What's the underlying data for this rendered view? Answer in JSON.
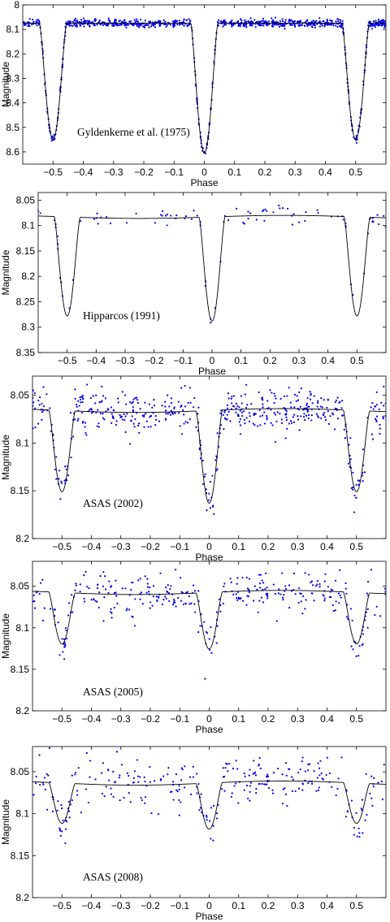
{
  "figure": {
    "colors": {
      "points": "#0000ee",
      "model": "#000000",
      "frame": "#000000"
    },
    "panel_count": 5
  },
  "chart_data": [
    {
      "type": "scatter",
      "title": "",
      "annotation": "Gyldenkerne et al. (1975)",
      "xlabel": "Phase",
      "ylabel": "Magnitude",
      "xlim": [
        -0.6,
        0.6
      ],
      "ylim": [
        8.0,
        8.65
      ],
      "y_inverted": true,
      "xticks": [
        -0.5,
        -0.4,
        -0.3,
        -0.2,
        -0.1,
        0,
        0.1,
        0.2,
        0.3,
        0.4,
        0.5
      ],
      "xtick_labels": [
        "−0.5",
        "−0.4",
        "−0.3",
        "−0.2",
        "−0.1",
        "0",
        "0.1",
        "0.2",
        "0.3",
        "0.4",
        "0.5"
      ],
      "yticks": [
        8,
        8.1,
        8.2,
        8.3,
        8.4,
        8.5,
        8.6
      ],
      "ytick_labels": [
        "8",
        "8.1",
        "8.2",
        "8.3",
        "8.4",
        "8.5",
        "8.6"
      ],
      "model": {
        "base": 8.075,
        "amp": 0,
        "primary_depth": 0.53,
        "secondary_depth": 0.475,
        "half_width": 0.045
      },
      "points": {
        "count": 900,
        "scatter": 0.008
      },
      "series": [
        {
          "kind": "points",
          "marker": "dot"
        },
        {
          "kind": "model",
          "style": "line"
        }
      ]
    },
    {
      "type": "scatter",
      "title": "",
      "annotation": "Hipparcos (1991)",
      "xlabel": "Phase",
      "ylabel": "Magnitude",
      "xlim": [
        -0.6,
        0.6
      ],
      "ylim": [
        8.035,
        8.35
      ],
      "y_inverted": true,
      "xticks": [
        -0.5,
        -0.4,
        -0.3,
        -0.2,
        -0.1,
        0,
        0.1,
        0.2,
        0.3,
        0.4,
        0.5
      ],
      "xtick_labels": [
        "−0.5",
        "−0.4",
        "−0.3",
        "−0.2",
        "−0.1",
        "0",
        "0.1",
        "0.2",
        "0.3",
        "0.4",
        "0.5"
      ],
      "yticks": [
        8.05,
        8.1,
        8.15,
        8.2,
        8.25,
        8.3,
        8.35
      ],
      "ytick_labels": [
        "8.05",
        "8.1",
        "8.15",
        "8.2",
        "8.25",
        "8.3",
        "8.35"
      ],
      "model": {
        "base": 8.086,
        "amp": 0.006,
        "primary_depth": 0.205,
        "secondary_depth": 0.195,
        "half_width": 0.045
      },
      "points": {
        "count": 95,
        "scatter": 0.008
      },
      "series": [
        {
          "kind": "points",
          "marker": "dot"
        },
        {
          "kind": "model",
          "style": "line"
        }
      ]
    },
    {
      "type": "scatter",
      "title": "",
      "annotation": "ASAS (2002)",
      "xlabel": "Phase",
      "ylabel": "Magnitude",
      "xlim": [
        -0.6,
        0.6
      ],
      "ylim": [
        8.03,
        8.2
      ],
      "y_inverted": true,
      "xticks": [
        -0.5,
        -0.4,
        -0.3,
        -0.2,
        -0.1,
        0,
        0.1,
        0.2,
        0.3,
        0.4,
        0.5
      ],
      "xtick_labels": [
        "−0.5",
        "−0.4",
        "−0.3",
        "−0.2",
        "−0.1",
        "0",
        "0.1",
        "0.2",
        "0.3",
        "0.4",
        "0.5"
      ],
      "yticks": [
        8.05,
        8.1,
        8.15,
        8.2
      ],
      "ytick_labels": [
        "8.05",
        "8.1",
        "8.15",
        "8.2"
      ],
      "model": {
        "base": 8.068,
        "amp": 0.004,
        "primary_depth": 0.097,
        "secondary_depth": 0.085,
        "half_width": 0.045
      },
      "points": {
        "count": 520,
        "scatter": 0.011
      },
      "series": [
        {
          "kind": "points",
          "marker": "dot"
        },
        {
          "kind": "model",
          "style": "line"
        }
      ]
    },
    {
      "type": "scatter",
      "title": "",
      "annotation": "ASAS (2005)",
      "xlabel": "Phase",
      "ylabel": "Magnitude",
      "xlim": [
        -0.6,
        0.6
      ],
      "ylim": [
        8.02,
        8.2
      ],
      "y_inverted": true,
      "xticks": [
        -0.5,
        -0.4,
        -0.3,
        -0.2,
        -0.1,
        0,
        0.1,
        0.2,
        0.3,
        0.4,
        0.5
      ],
      "xtick_labels": [
        "−0.5",
        "−0.4",
        "−0.3",
        "−0.2",
        "−0.1",
        "0",
        "0.1",
        "0.2",
        "0.3",
        "0.4",
        "0.5"
      ],
      "yticks": [
        8.05,
        8.1,
        8.15,
        8.2
      ],
      "ytick_labels": [
        "8.05",
        "8.1",
        "8.15",
        "8.2"
      ],
      "model": {
        "base": 8.06,
        "amp": 0.005,
        "primary_depth": 0.068,
        "secondary_depth": 0.062,
        "half_width": 0.045
      },
      "points": {
        "count": 330,
        "scatter": 0.014
      },
      "series": [
        {
          "kind": "points",
          "marker": "dot"
        },
        {
          "kind": "model",
          "style": "line"
        }
      ]
    },
    {
      "type": "scatter",
      "title": "",
      "annotation": "ASAS (2008)",
      "xlabel": "Phase",
      "ylabel": "Magnitude",
      "xlim": [
        -0.6,
        0.6
      ],
      "ylim": [
        8.02,
        8.2
      ],
      "y_inverted": true,
      "xticks": [
        -0.5,
        -0.4,
        -0.3,
        -0.2,
        -0.1,
        0,
        0.1,
        0.2,
        0.3,
        0.4,
        0.5
      ],
      "xtick_labels": [
        "−0.5",
        "−0.4",
        "−0.3",
        "−0.2",
        "−0.1",
        "0",
        "0.1",
        "0.2",
        "0.3",
        "0.4",
        "0.5"
      ],
      "yticks": [
        8.05,
        8.1,
        8.15,
        8.2
      ],
      "ytick_labels": [
        "8.05",
        "8.1",
        "8.15",
        "8.2"
      ],
      "model": {
        "base": 8.066,
        "amp": 0.005,
        "primary_depth": 0.055,
        "secondary_depth": 0.048,
        "half_width": 0.045
      },
      "points": {
        "count": 290,
        "scatter": 0.015
      },
      "series": [
        {
          "kind": "points",
          "marker": "dot"
        },
        {
          "kind": "model",
          "style": "line"
        }
      ]
    }
  ]
}
